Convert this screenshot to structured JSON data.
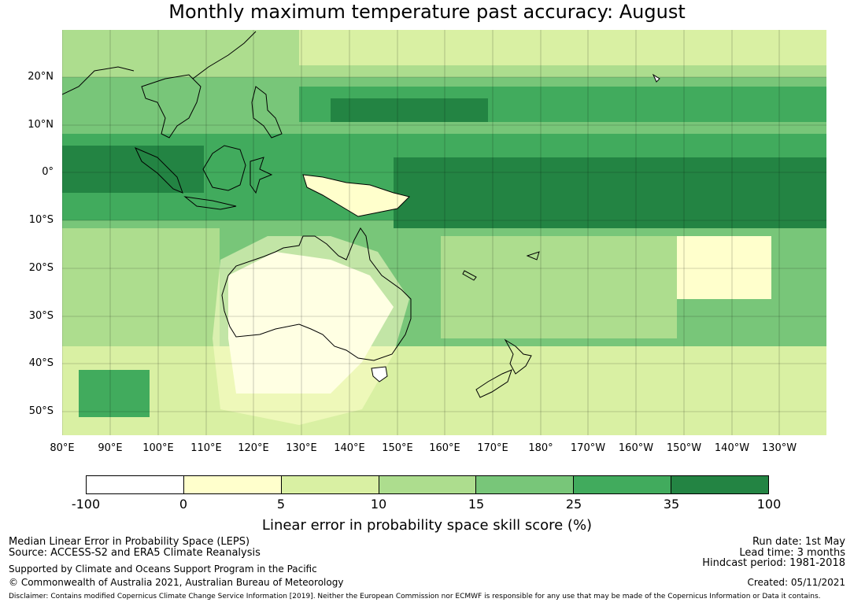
{
  "title": "Monthly maximum temperature past accuracy: August",
  "map": {
    "lat_ticks": [
      "20°N",
      "10°N",
      "0°",
      "10°S",
      "20°S",
      "30°S",
      "40°S",
      "50°S"
    ],
    "lon_ticks": [
      "80°E",
      "90°E",
      "100°E",
      "110°E",
      "120°E",
      "130°E",
      "140°E",
      "150°E",
      "160°E",
      "170°E",
      "180°",
      "170°W",
      "160°W",
      "150°W",
      "140°W",
      "130°W"
    ]
  },
  "colorbar": {
    "label": "Linear error in probability space skill score (%)",
    "ticks": [
      "-100",
      "0",
      "5",
      "10",
      "15",
      "25",
      "35",
      "100"
    ],
    "colors": [
      "#ffffff",
      "#ffffcc",
      "#d9f0a3",
      "#addd8e",
      "#78c679",
      "#41ab5d",
      "#238443"
    ]
  },
  "footer": {
    "left_line1": "Median Linear Error in Probability Space (LEPS)",
    "left_line2": "Source: ACCESS-S2 and ERA5 Climate Reanalysis",
    "left_line3": "Supported by Climate and Oceans Support Program in the Pacific",
    "left_line4": "© Commonwealth of Australia 2021, Australian Bureau of Meteorology",
    "run_date": "Run date: 1st May",
    "lead_time": "Lead time: 3 months",
    "hindcast": "Hindcast period: 1981-2018",
    "created": "Created: 05/11/2021",
    "disclaimer": "Disclaimer: Contains modified Copernicus Climate Change Service Information [2019]. Neither the European Commission nor ECMWF is responsible for any use that may be made of the Copernicus Information or Data it contains."
  }
}
